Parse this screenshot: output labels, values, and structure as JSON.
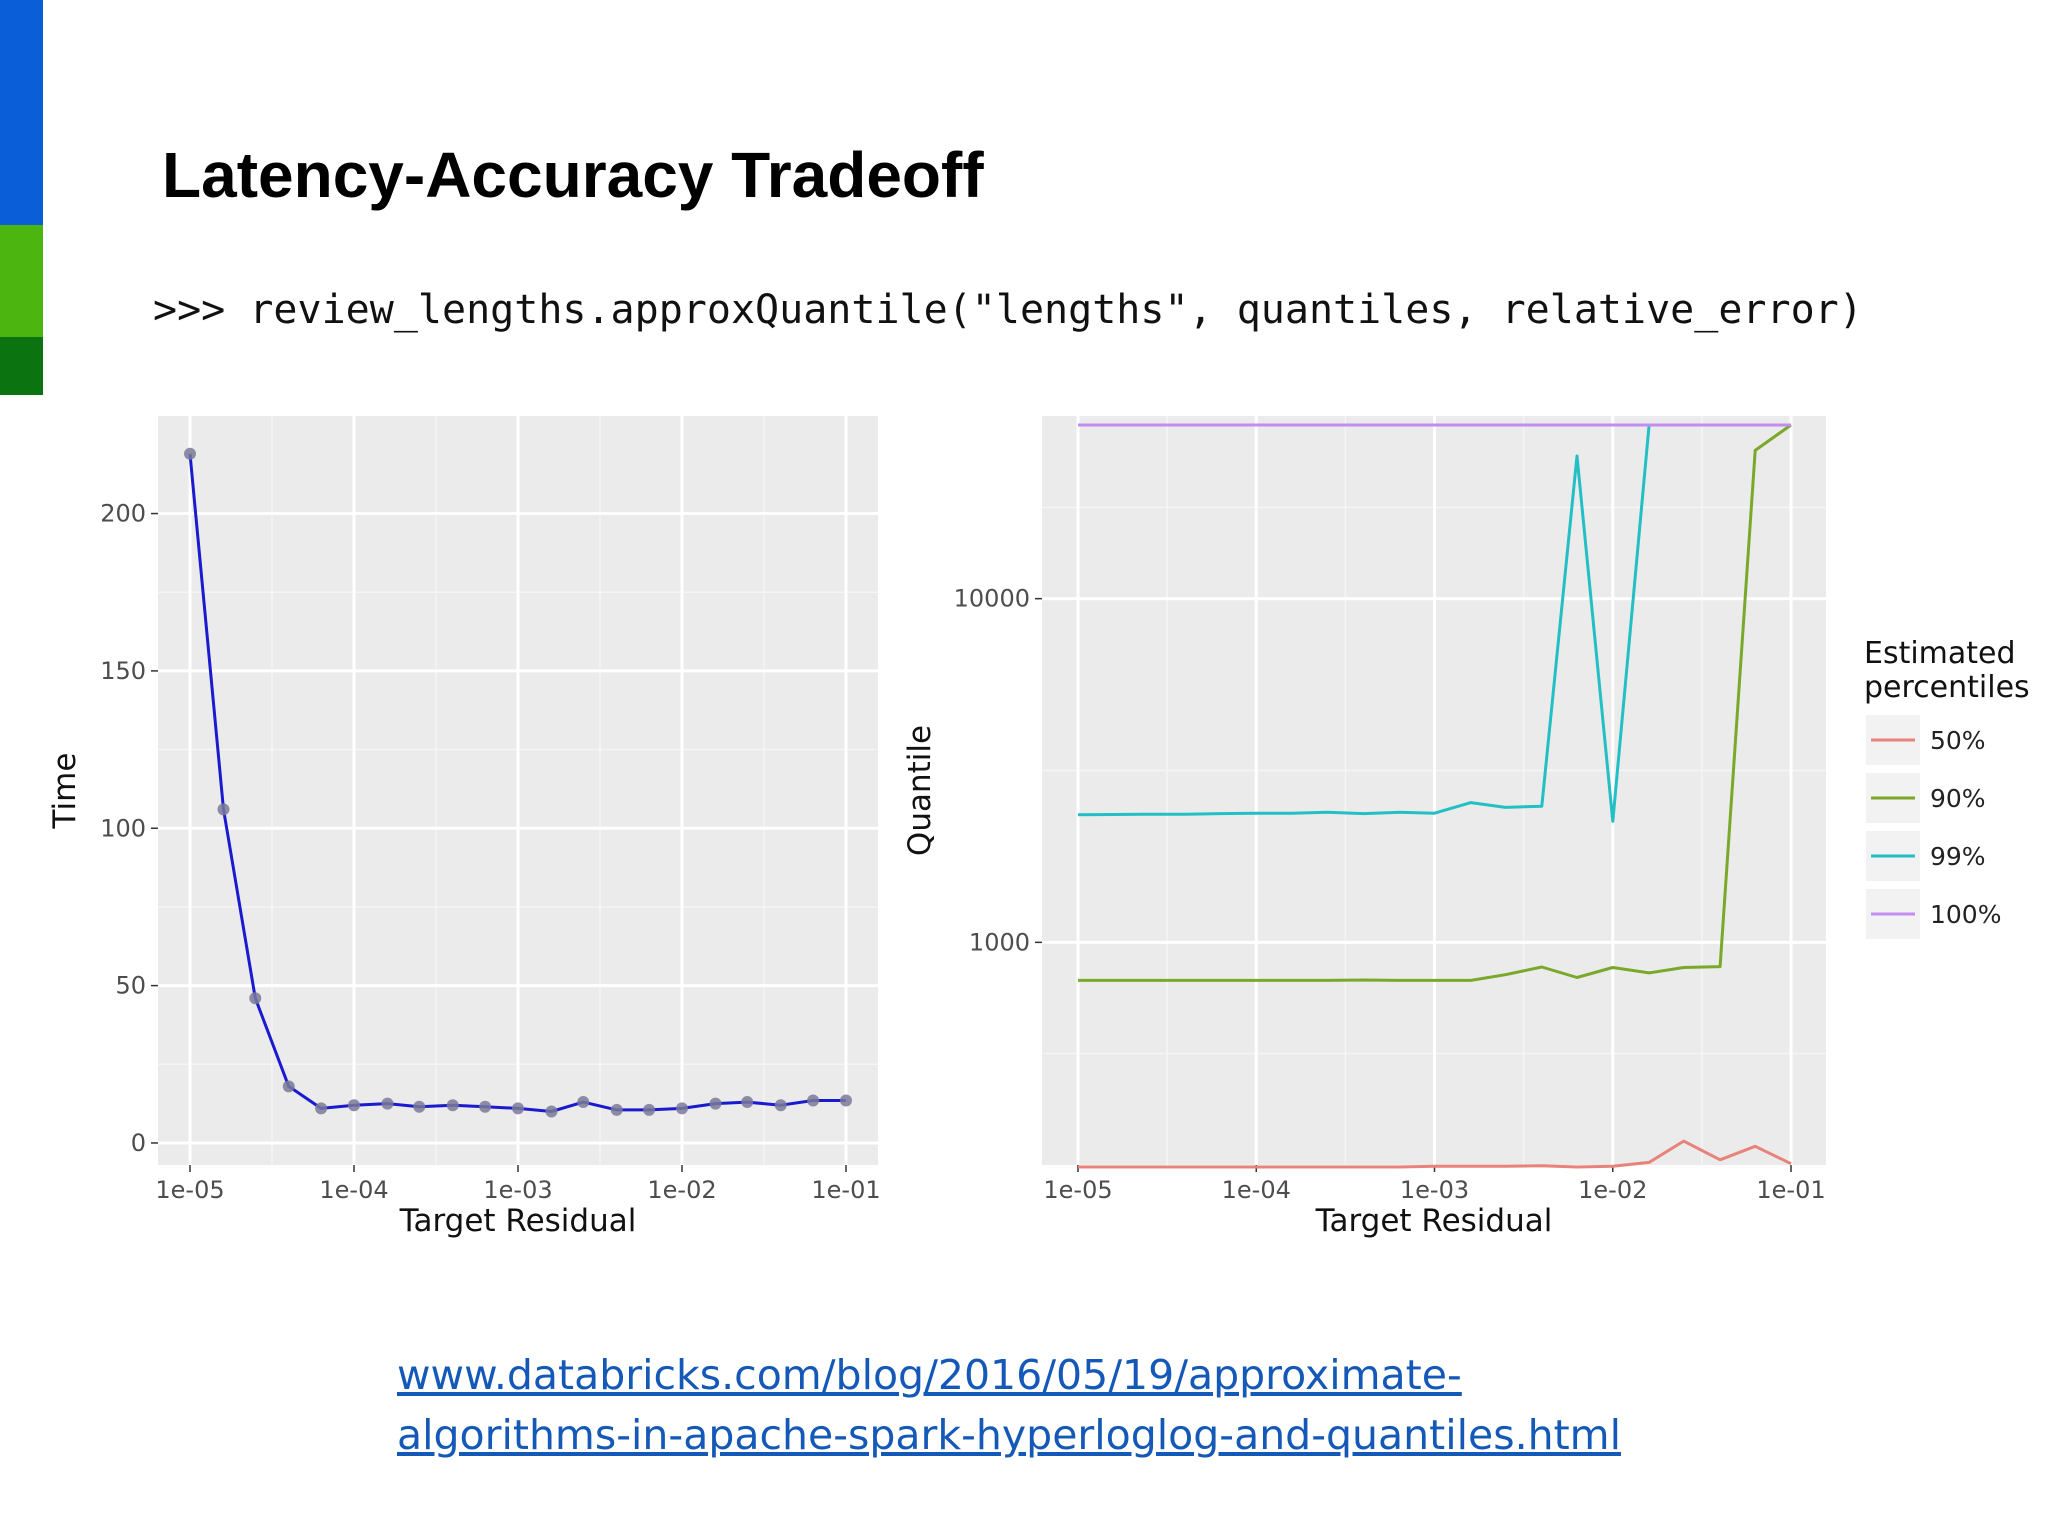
{
  "slide": {
    "title": "Latency-Accuracy Tradeoff",
    "code": ">>> review_lengths.approxQuantile(\"lengths\", quantiles, relative_error)",
    "link_line1": "www.databricks.com/blog/2016/05/19/approximate-",
    "link_line2": "algorithms-in-apache-spark-hyperloglog-and-quantiles.html",
    "accent_colors": [
      "#0a5fd8",
      "#4cb510",
      "#0b7410"
    ]
  },
  "chart_data": [
    {
      "type": "line",
      "xlabel": "Target Residual",
      "ylabel": "Time",
      "x_scale": "log",
      "xlim": [
        1e-05,
        0.1
      ],
      "ylim": [
        -7,
        231
      ],
      "x_ticks": [
        1e-05,
        0.0001,
        0.001,
        0.01,
        0.1
      ],
      "x_tick_labels": [
        "1e-05",
        "1e-04",
        "1e-03",
        "1e-02",
        "1e-01"
      ],
      "y_ticks": [
        0,
        50,
        100,
        150,
        200
      ],
      "y_tick_labels": [
        "0",
        "50",
        "100",
        "150",
        "200"
      ],
      "grid": true,
      "legend": "none",
      "line_color": "#1a1ad0",
      "point_color": "#7a7a9a",
      "series": [
        {
          "x": [
            1e-05,
            1.6e-05,
            2.5e-05,
            4e-05,
            6.3e-05,
            0.0001,
            0.00016,
            0.00025,
            0.0004,
            0.00063,
            0.001,
            0.0016,
            0.0025,
            0.004,
            0.0063,
            0.01,
            0.016,
            0.025,
            0.04,
            0.063,
            0.1
          ],
          "y": [
            219,
            106,
            46,
            18,
            11,
            12,
            12.5,
            11.5,
            12,
            11.5,
            11,
            10,
            13,
            10.5,
            10.5,
            11,
            12.5,
            13,
            12,
            13.5,
            13.5
          ]
        }
      ]
    },
    {
      "type": "line",
      "xlabel": "Target Residual",
      "ylabel": "Quantile",
      "x_scale": "log",
      "y_scale": "log",
      "xlim": [
        1e-05,
        0.1
      ],
      "ylim": [
        225,
        34000
      ],
      "x_ticks": [
        1e-05,
        0.0001,
        0.001,
        0.01,
        0.1
      ],
      "x_tick_labels": [
        "1e-05",
        "1e-04",
        "1e-03",
        "1e-02",
        "1e-01"
      ],
      "y_ticks": [
        1000,
        10000
      ],
      "y_tick_labels": [
        "1000",
        "10000"
      ],
      "grid": true,
      "legend": "right",
      "legend_title_line1": "Estimated",
      "legend_title_line2": "percentiles",
      "series": [
        {
          "name": "50%",
          "color": "#e8827a",
          "x": [
            1e-05,
            1.6e-05,
            2.5e-05,
            4e-05,
            6.3e-05,
            0.0001,
            0.00016,
            0.00025,
            0.0004,
            0.00063,
            0.001,
            0.0016,
            0.0025,
            0.004,
            0.0063,
            0.01,
            0.016,
            0.025,
            0.04,
            0.063,
            0.1
          ],
          "y": [
            222,
            222,
            222,
            222,
            222,
            222,
            222,
            222,
            222,
            222,
            223,
            223,
            223,
            224,
            222,
            223,
            229,
            264,
            233,
            255,
            227
          ]
        },
        {
          "name": "90%",
          "color": "#7aa82a",
          "x": [
            1e-05,
            1.6e-05,
            2.5e-05,
            4e-05,
            6.3e-05,
            0.0001,
            0.00016,
            0.00025,
            0.0004,
            0.00063,
            0.001,
            0.0016,
            0.0025,
            0.004,
            0.0063,
            0.01,
            0.016,
            0.025,
            0.04,
            0.063,
            0.1
          ],
          "y": [
            775,
            775,
            775,
            775,
            775,
            775,
            775,
            775,
            777,
            775,
            775,
            775,
            805,
            848,
            790,
            845,
            815,
            845,
            850,
            27000,
            32000
          ]
        },
        {
          "name": "99%",
          "color": "#22bfc4",
          "x": [
            1e-05,
            1.6e-05,
            2.5e-05,
            4e-05,
            6.3e-05,
            0.0001,
            0.00016,
            0.00025,
            0.0004,
            0.00063,
            0.001,
            0.0016,
            0.0025,
            0.004,
            0.0063,
            0.01,
            0.016,
            0.025,
            0.04,
            0.063,
            0.1
          ],
          "y": [
            2350,
            2355,
            2360,
            2360,
            2370,
            2375,
            2375,
            2390,
            2370,
            2390,
            2375,
            2550,
            2470,
            2490,
            26000,
            2250,
            32000,
            32000,
            32000,
            32000,
            32000
          ]
        },
        {
          "name": "100%",
          "color": "#c38cf0",
          "x": [
            1e-05,
            1.6e-05,
            2.5e-05,
            4e-05,
            6.3e-05,
            0.0001,
            0.00016,
            0.00025,
            0.0004,
            0.00063,
            0.001,
            0.0016,
            0.0025,
            0.004,
            0.0063,
            0.01,
            0.016,
            0.025,
            0.04,
            0.063,
            0.1
          ],
          "y": [
            32000,
            32000,
            32000,
            32000,
            32000,
            32000,
            32000,
            32000,
            32000,
            32000,
            32000,
            32000,
            32000,
            32000,
            32000,
            32000,
            32000,
            32000,
            32000,
            32000,
            32000
          ]
        }
      ]
    }
  ]
}
